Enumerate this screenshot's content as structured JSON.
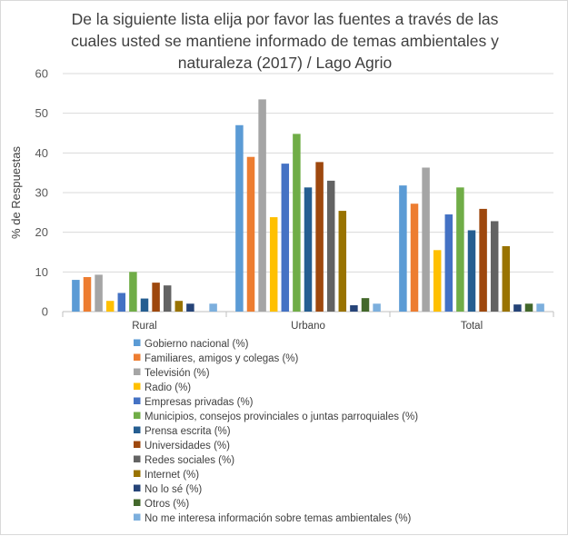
{
  "chart_data": {
    "type": "bar",
    "title_lines": [
      "De la siguiente lista elija por favor las fuentes a través de las",
      "cuales usted se mantiene informado de temas ambientales y",
      "naturaleza (2017) / Lago Agrio"
    ],
    "xlabel": "",
    "ylabel": "% de Respuestas",
    "ylim": [
      0,
      60
    ],
    "yticks": [
      0,
      10,
      20,
      30,
      40,
      50,
      60
    ],
    "grid": true,
    "legend_position": "bottom",
    "categories": [
      "Rural",
      "Urbano",
      "Total"
    ],
    "series": [
      {
        "name": "Gobierno nacional (%)",
        "color": "#5b9bd5",
        "values": [
          8.0,
          47.0,
          31.8
        ]
      },
      {
        "name": "Familiares, amigos y colegas (%)",
        "color": "#ed7d31",
        "values": [
          8.7,
          39.0,
          27.2
        ]
      },
      {
        "name": "Televisión (%)",
        "color": "#a5a5a5",
        "values": [
          9.3,
          53.5,
          36.3
        ]
      },
      {
        "name": "Radio (%)",
        "color": "#ffc000",
        "values": [
          2.7,
          23.8,
          15.5
        ]
      },
      {
        "name": "Empresas privadas (%)",
        "color": "#4472c4",
        "values": [
          4.7,
          37.3,
          24.5
        ]
      },
      {
        "name": "Municipios, consejos provinciales o juntas parroquiales (%)",
        "color": "#70ad47",
        "values": [
          10.0,
          44.8,
          31.3
        ]
      },
      {
        "name": "Prensa escrita (%)",
        "color": "#255e91",
        "values": [
          3.3,
          31.3,
          20.5
        ]
      },
      {
        "name": "Universidades (%)",
        "color": "#9e480e",
        "values": [
          7.3,
          37.7,
          25.9
        ]
      },
      {
        "name": "Redes sociales (%)",
        "color": "#636363",
        "values": [
          6.6,
          33.0,
          22.8
        ]
      },
      {
        "name": "Internet (%)",
        "color": "#997300",
        "values": [
          2.7,
          25.4,
          16.5
        ]
      },
      {
        "name": "No lo sé (%)",
        "color": "#264478",
        "values": [
          2.0,
          1.6,
          1.8
        ]
      },
      {
        "name": "Otros (%)",
        "color": "#43682b",
        "values": [
          0,
          3.4,
          2.0
        ]
      },
      {
        "name": "No me interesa información sobre temas ambientales (%)",
        "color": "#7cafdd",
        "values": [
          2.0,
          2.0,
          2.0
        ]
      }
    ]
  }
}
